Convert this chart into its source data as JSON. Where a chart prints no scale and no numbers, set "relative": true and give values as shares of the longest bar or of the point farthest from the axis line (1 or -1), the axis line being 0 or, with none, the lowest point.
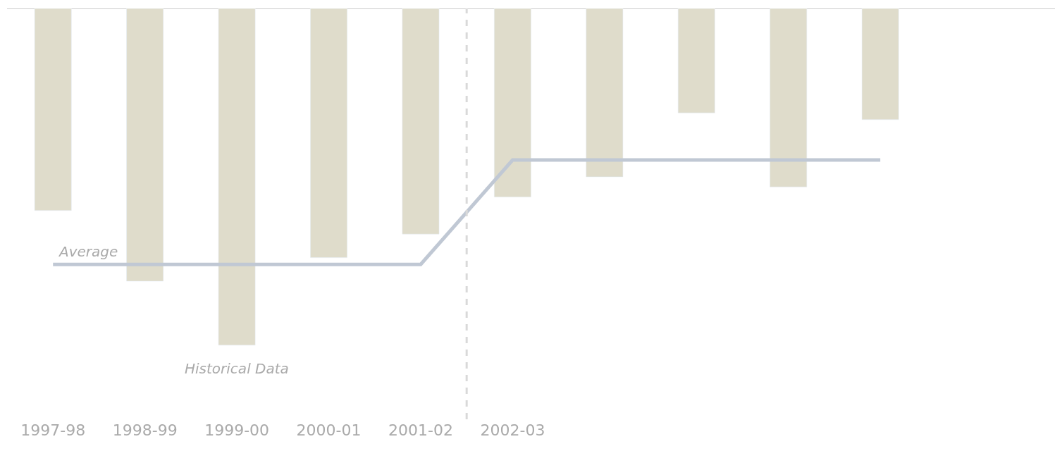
{
  "chart_data": {
    "type": "bar",
    "relative": true,
    "categories": [
      "1997-98",
      "1998-99",
      "1999-00",
      "2000-01",
      "2001-02",
      "2002-03",
      null,
      null,
      null,
      null
    ],
    "series": [
      {
        "color": "#dfdccb",
        "values": [
          -0.6,
          -0.81,
          -1,
          -0.74,
          -0.67,
          -0.56,
          -0.5,
          -0.31,
          -0.53,
          -0.33
        ]
      },
      {
        "type": "line",
        "name": "Average",
        "color": "#c0c8d4",
        "values": [
          -0.76,
          -0.76,
          -0.76,
          -0.76,
          -0.76,
          -0.45,
          -0.45,
          -0.45,
          -0.45,
          -0.45
        ]
      }
    ],
    "annotations": [
      "Historical Data"
    ]
  }
}
